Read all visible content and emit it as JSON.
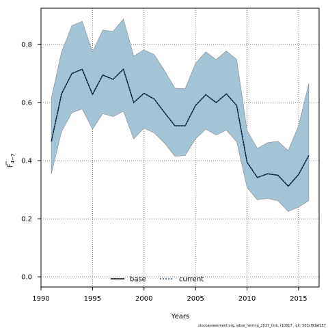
{
  "chart_data": {
    "type": "line",
    "xlabel": "Years",
    "ylabel_base": "F",
    "ylabel_sub": "4−7",
    "xlim": [
      1990,
      2017
    ],
    "ylim": [
      -0.035,
      0.925
    ],
    "xticks": [
      1990,
      1995,
      2000,
      2005,
      2010,
      2015
    ],
    "yticks": [
      0.0,
      0.2,
      0.4,
      0.6,
      0.8
    ],
    "ytick_labels": [
      "0.0",
      "0.2",
      "0.4",
      "0.6",
      "0.8"
    ],
    "grid": true,
    "legend_position": "bottom-center",
    "x": [
      1991,
      1992,
      1993,
      1994,
      1995,
      1996,
      1997,
      1998,
      1999,
      2000,
      2001,
      2002,
      2003,
      2004,
      2005,
      2006,
      2007,
      2008,
      2009,
      2010,
      2011,
      2012,
      2013,
      2014,
      2015,
      2016
    ],
    "band": {
      "upper": [
        0.615,
        0.775,
        0.865,
        0.88,
        0.775,
        0.85,
        0.845,
        0.888,
        0.76,
        0.782,
        0.765,
        0.71,
        0.65,
        0.648,
        0.735,
        0.775,
        0.748,
        0.778,
        0.748,
        0.505,
        0.442,
        0.462,
        0.467,
        0.435,
        0.52,
        0.665
      ],
      "lower": [
        0.355,
        0.5,
        0.565,
        0.578,
        0.508,
        0.562,
        0.552,
        0.57,
        0.475,
        0.512,
        0.495,
        0.46,
        0.415,
        0.418,
        0.475,
        0.508,
        0.488,
        0.505,
        0.465,
        0.308,
        0.265,
        0.27,
        0.262,
        0.225,
        0.24,
        0.262
      ],
      "color": "#a3c4d6",
      "edge": "#888888"
    },
    "series": [
      {
        "name": "base",
        "color": "#000000",
        "dash": "solid",
        "values": [
          0.465,
          0.63,
          0.7,
          0.715,
          0.628,
          0.695,
          0.68,
          0.715,
          0.6,
          0.632,
          0.612,
          0.565,
          0.52,
          0.52,
          0.59,
          0.627,
          0.6,
          0.63,
          0.59,
          0.395,
          0.342,
          0.355,
          0.35,
          0.312,
          0.352,
          0.418
        ]
      },
      {
        "name": "current",
        "color": "#1f5c8a",
        "dash": "dotted",
        "values": [
          0.465,
          0.63,
          0.7,
          0.715,
          0.628,
          0.695,
          0.68,
          0.715,
          0.6,
          0.632,
          0.612,
          0.565,
          0.52,
          0.52,
          0.59,
          0.627,
          0.6,
          0.63,
          0.59,
          0.395,
          0.342,
          0.355,
          0.35,
          0.312,
          0.352,
          0.418
        ]
      }
    ]
  },
  "footnote": "stockassessment.org,  wbss_herring_2017_tmb,  r10317 ,  git: 503cf91af157"
}
